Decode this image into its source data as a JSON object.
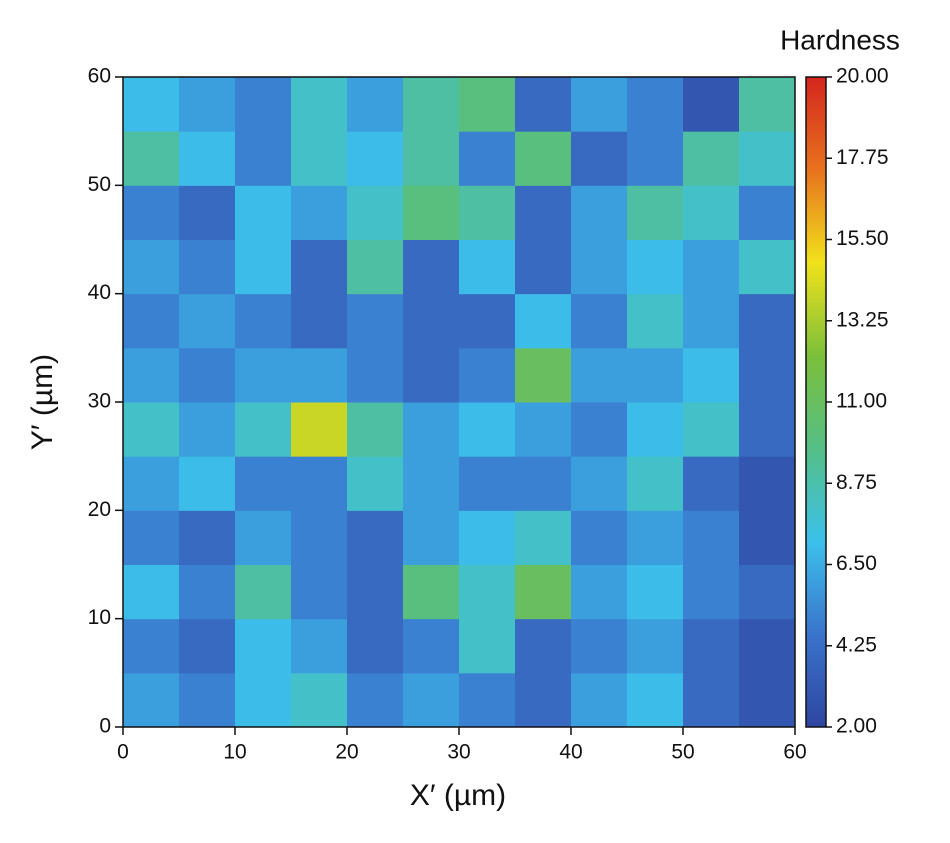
{
  "chart_data": {
    "type": "heatmap",
    "colorbar_title": "Hardness",
    "xlabel": "X′ (µm)",
    "ylabel": "Y′ (µm)",
    "x": [
      2.5,
      7.5,
      12.5,
      17.5,
      22.5,
      27.5,
      32.5,
      37.5,
      42.5,
      47.5,
      52.5,
      57.5
    ],
    "y": [
      2.5,
      7.5,
      12.5,
      17.5,
      22.5,
      27.5,
      32.5,
      37.5,
      42.5,
      47.5,
      52.5,
      57.5
    ],
    "z": [
      [
        6,
        5,
        7,
        8,
        5,
        6,
        5,
        4,
        6,
        7,
        4,
        3
      ],
      [
        5,
        4,
        7,
        6,
        4,
        5,
        8,
        4,
        5,
        6,
        4,
        3
      ],
      [
        7,
        5,
        9,
        5,
        4,
        10,
        8,
        11,
        6,
        7,
        5,
        4
      ],
      [
        5,
        4,
        6,
        5,
        4,
        6,
        7,
        8,
        5,
        6,
        5,
        3
      ],
      [
        6,
        7,
        5,
        5,
        8,
        6,
        5,
        5,
        6,
        8,
        4,
        3
      ],
      [
        8,
        6,
        8,
        14,
        9,
        6,
        7,
        6,
        5,
        7,
        8,
        4
      ],
      [
        6,
        5,
        6,
        6,
        5,
        4,
        5,
        11,
        6,
        6,
        7,
        4
      ],
      [
        5,
        6,
        5,
        4,
        5,
        4,
        4,
        7,
        5,
        8,
        6,
        4
      ],
      [
        6,
        5,
        7,
        4,
        9,
        4,
        7,
        4,
        6,
        7,
        6,
        8
      ],
      [
        5,
        4,
        7,
        6,
        8,
        10,
        9,
        4,
        6,
        9,
        8,
        5
      ],
      [
        9,
        7,
        5,
        8,
        7,
        9,
        5,
        10,
        4,
        5,
        9,
        8
      ],
      [
        7,
        6,
        5,
        8,
        6,
        9,
        10,
        4,
        6,
        5,
        3,
        9
      ]
    ],
    "xlim": [
      0,
      60
    ],
    "ylim": [
      0,
      60
    ],
    "xticks": [
      0,
      10,
      20,
      30,
      40,
      50,
      60
    ],
    "yticks": [
      0,
      10,
      20,
      30,
      40,
      50,
      60
    ],
    "clim": [
      2,
      20
    ],
    "cticks": [
      {
        "value": 2,
        "label": "2.00"
      },
      {
        "value": 4.25,
        "label": "4.25"
      },
      {
        "value": 6.5,
        "label": "6.50"
      },
      {
        "value": 8.75,
        "label": "8.75"
      },
      {
        "value": 11,
        "label": "11.00"
      },
      {
        "value": 13.25,
        "label": "13.25"
      },
      {
        "value": 15.5,
        "label": "15.50"
      },
      {
        "value": 17.75,
        "label": "17.75"
      },
      {
        "value": 20,
        "label": "20.00"
      }
    ],
    "colormap": [
      "#2f45a0",
      "#3a74cc",
      "#3cc0ea",
      "#55bf86",
      "#7cbf3a",
      "#f0e21c",
      "#e8721e",
      "#d4261e"
    ]
  }
}
